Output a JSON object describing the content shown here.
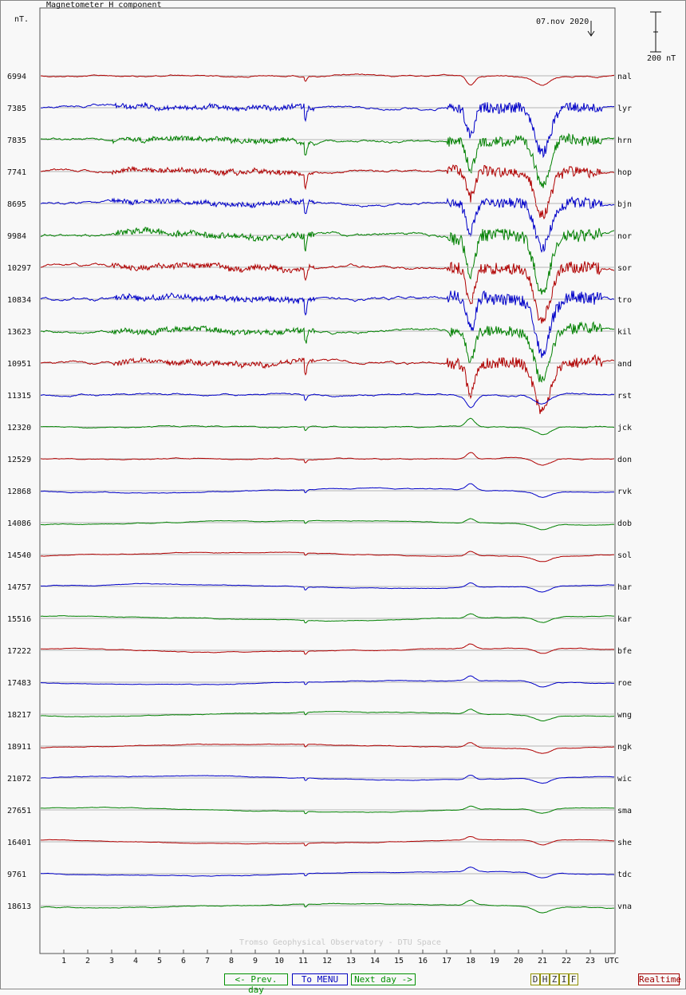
{
  "header": {
    "title": "Magnetometer H component",
    "unit": "nT.",
    "date": "07.nov 2020",
    "scale_label": "200 nT"
  },
  "footer": "Tromso Geophysical Observatory - DTU Space",
  "nav": {
    "prev": "<- Prev. day",
    "menu": "To MENU",
    "next": "Next day ->",
    "realtime": "Realtime",
    "components": [
      "D",
      "H",
      "Z",
      "I",
      "F"
    ]
  },
  "colors": {
    "red": "#b00000",
    "blue": "#0000c8",
    "green": "#008000",
    "grid": "#b4b4b4"
  },
  "chart_data": {
    "type": "line",
    "title": "Magnetometer H component",
    "xlabel": "UTC",
    "ylabel": "nT.",
    "x_ticks": [
      "1",
      "2",
      "3",
      "4",
      "5",
      "6",
      "7",
      "8",
      "9",
      "10",
      "11",
      "12",
      "13",
      "14",
      "15",
      "16",
      "17",
      "18",
      "19",
      "20",
      "21",
      "22",
      "23"
    ],
    "x_unit_label": "UTC",
    "xlim": [
      0,
      24
    ],
    "scale_bar_nT": 200,
    "series": [
      {
        "name": "nal",
        "baseline": "6994",
        "color": "red",
        "activity": 0.35
      },
      {
        "name": "lyr",
        "baseline": "7385",
        "color": "blue",
        "activity": 0.8
      },
      {
        "name": "hrn",
        "baseline": "7835",
        "color": "green",
        "activity": 0.8
      },
      {
        "name": "hop",
        "baseline": "7741",
        "color": "red",
        "activity": 0.8
      },
      {
        "name": "bjn",
        "baseline": "8695",
        "color": "blue",
        "activity": 0.8
      },
      {
        "name": "nor",
        "baseline": "9984",
        "color": "green",
        "activity": 1.0
      },
      {
        "name": "sor",
        "baseline": "10297",
        "color": "red",
        "activity": 0.95
      },
      {
        "name": "tro",
        "baseline": "10834",
        "color": "blue",
        "activity": 0.95
      },
      {
        "name": "kil",
        "baseline": "13623",
        "color": "green",
        "activity": 0.9
      },
      {
        "name": "and",
        "baseline": "10951",
        "color": "red",
        "activity": 0.85
      },
      {
        "name": "rst",
        "baseline": "11315",
        "color": "blue",
        "activity": 0.5
      },
      {
        "name": "jck",
        "baseline": "12320",
        "color": "green",
        "activity": 0.25
      },
      {
        "name": "don",
        "baseline": "12529",
        "color": "red",
        "activity": 0.2
      },
      {
        "name": "rvk",
        "baseline": "12868",
        "color": "blue",
        "activity": 0.12
      },
      {
        "name": "dob",
        "baseline": "14086",
        "color": "green",
        "activity": 0.08
      },
      {
        "name": "sol",
        "baseline": "14540",
        "color": "red",
        "activity": 0.08
      },
      {
        "name": "har",
        "baseline": "14757",
        "color": "blue",
        "activity": 0.07
      },
      {
        "name": "kar",
        "baseline": "15516",
        "color": "green",
        "activity": 0.07
      },
      {
        "name": "bfe",
        "baseline": "17222",
        "color": "red",
        "activity": 0.08
      },
      {
        "name": "roe",
        "baseline": "17483",
        "color": "blue",
        "activity": 0.08
      },
      {
        "name": "wng",
        "baseline": "18217",
        "color": "green",
        "activity": 0.07
      },
      {
        "name": "ngk",
        "baseline": "18911",
        "color": "red",
        "activity": 0.07
      },
      {
        "name": "wic",
        "baseline": "21072",
        "color": "blue",
        "activity": 0.06
      },
      {
        "name": "sma",
        "baseline": "27651",
        "color": "green",
        "activity": 0.02
      },
      {
        "name": "she",
        "baseline": "16401",
        "color": "red",
        "activity": 0.02
      },
      {
        "name": "tdc",
        "baseline": "9761",
        "color": "blue",
        "activity": 0.05
      },
      {
        "name": "vna",
        "baseline": "18613",
        "color": "green",
        "activity": 0.1
      }
    ]
  }
}
